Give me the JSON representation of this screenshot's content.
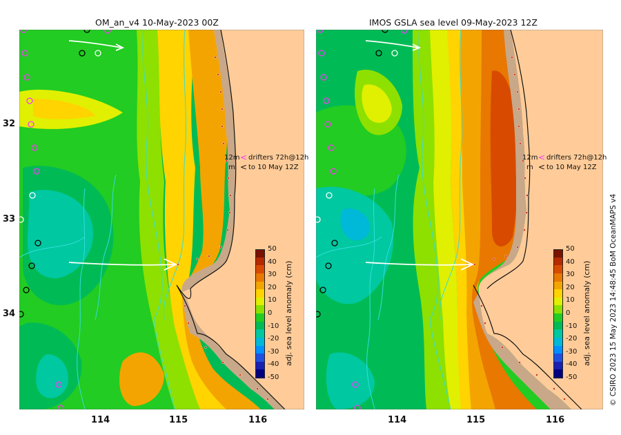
{
  "maps": [
    {
      "title": "OM_an_v4  10-May-2023 00Z",
      "drifter_label": "drifters 72h@12h",
      "drifter_date": "to 10 May 12Z",
      "m_label_a": "12m",
      "m_label_b": "m"
    },
    {
      "title": "IMOS GSLA sea level  09-May-2023 12Z",
      "drifter_label": "drifters 72h@12h",
      "drifter_date": "to 10 May 12Z",
      "m_label_a": "12m",
      "m_label_b": "m"
    }
  ],
  "axes": {
    "lon_ticks": [
      "114",
      "115",
      "116"
    ],
    "lat_ticks": [
      "32",
      "33",
      "34"
    ]
  },
  "colorbar": {
    "label": "adj. sea level anomaly (cm)",
    "ticks": [
      "50",
      "40",
      "30",
      "20",
      "10",
      "0",
      "-10",
      "-20",
      "-30",
      "-40",
      "-50"
    ],
    "colors": [
      "#7a1200",
      "#b52a00",
      "#d84a00",
      "#e87800",
      "#f4a400",
      "#ffd400",
      "#e0f000",
      "#8ee000",
      "#22cc22",
      "#00bb55",
      "#00c8a0",
      "#00b8d8",
      "#0090ff",
      "#2050e0",
      "#1a20b0",
      "#000080"
    ]
  },
  "credit": "© CSIRO 2023   15 May 2023 14:48:45 BoM OceanMAPS v4",
  "legend_colors": {
    "land": "#ffcc99",
    "shelf": "#c8a888",
    "drifter_magenta": "#ff33ff",
    "drifter_black": "#000000",
    "arrow": "#ffffff",
    "contour": "#33dddd"
  }
}
